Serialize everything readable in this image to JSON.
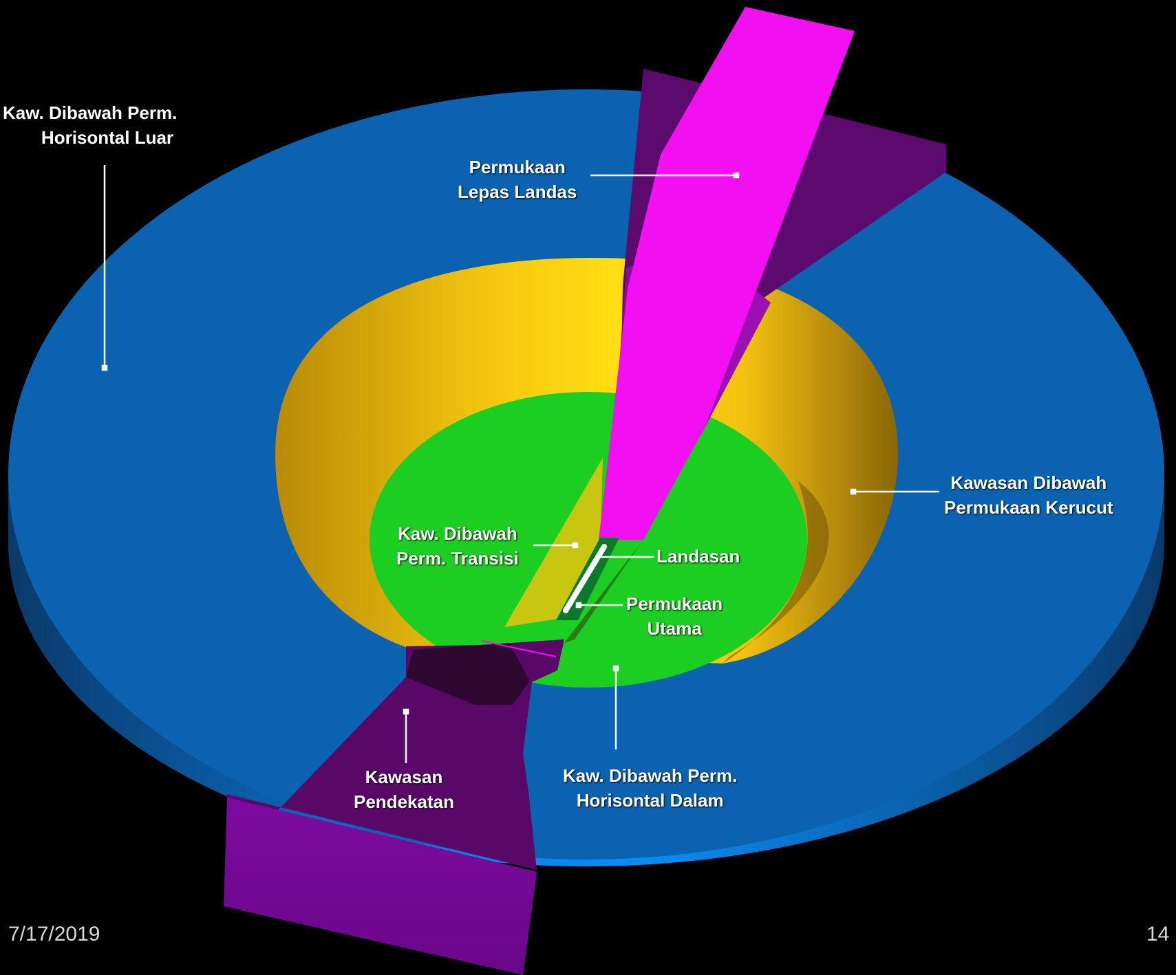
{
  "colors": {
    "background": "#000000",
    "outer_horizontal": "#0a62b0",
    "outer_horizontal_side": "#0b86ee",
    "conical": "#f1bd10",
    "inner_horizontal": "#1ccd22",
    "transitional": "#c9c612",
    "takeoff": "#f20ff2",
    "approach": "#7a0a9a",
    "approach_dark": "#3a0a40",
    "runway": "#ffffff",
    "strip": "#0a7a2a",
    "leader_line": "#ffffff"
  },
  "labels": {
    "outer_horizontal": [
      "Kaw. Dibawah Perm.",
      "Horisontal Luar"
    ],
    "takeoff": [
      "Permukaan",
      "Lepas Landas"
    ],
    "conical": [
      "Kawasan Dibawah",
      "Permukaan Kerucut"
    ],
    "transitional": [
      "Kaw. Dibawah",
      "Perm. Transisi"
    ],
    "runway": "Landasan",
    "primary": [
      "Permukaan",
      "Utama"
    ],
    "approach": [
      "Kawasan",
      "Pendekatan"
    ],
    "inner_horizontal": [
      "Kaw. Dibawah Perm.",
      "Horisontal Dalam"
    ]
  },
  "footer": {
    "date": "7/17/2019",
    "page_number": "14"
  }
}
